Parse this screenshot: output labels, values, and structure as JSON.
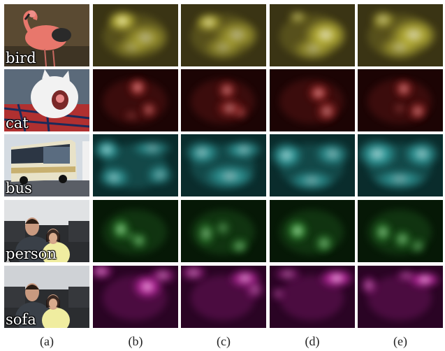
{
  "figure": {
    "column_labels": [
      "(a)",
      "(b)",
      "(c)",
      "(d)",
      "(e)"
    ],
    "rows": [
      {
        "class_label": "bird",
        "photo_icon": "flamingo-photo",
        "heat_color": "#d8d040",
        "bg_color": "#3a3414"
      },
      {
        "class_label": "cat",
        "photo_icon": "yawning-cat-photo",
        "heat_color": "#c83030",
        "bg_color": "#1c0404"
      },
      {
        "class_label": "bus",
        "photo_icon": "coach-bus-photo",
        "heat_color": "#40c8c8",
        "bg_color": "#0a2c2c"
      },
      {
        "class_label": "person",
        "photo_icon": "couple-portrait-photo",
        "heat_color": "#40b040",
        "bg_color": "#061806"
      },
      {
        "class_label": "sofa",
        "photo_icon": "couple-on-sofa-photo",
        "heat_color": "#e030c0",
        "bg_color": "#2a0424"
      }
    ]
  }
}
